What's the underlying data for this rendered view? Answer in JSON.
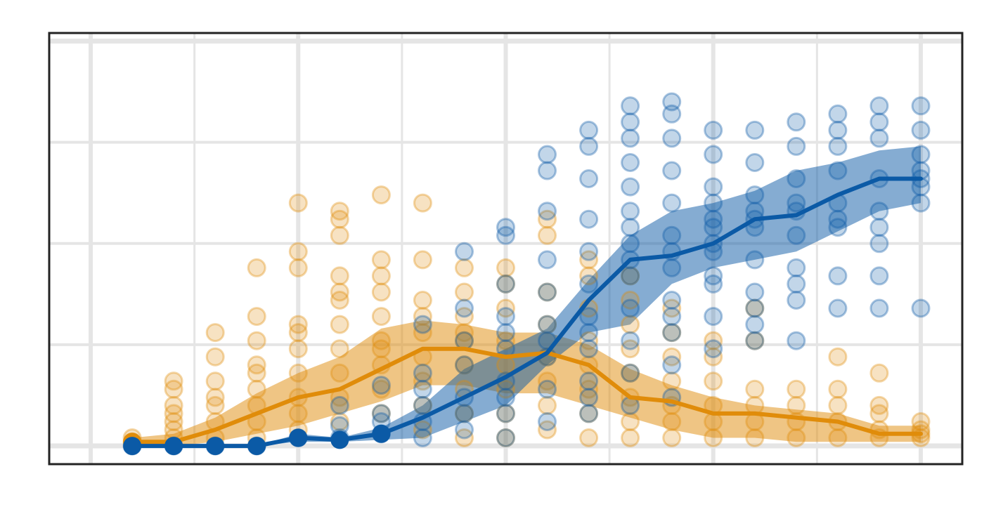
{
  "colors": {
    "series_a": "#0b5aa6",
    "series_b": "#e08c0a",
    "grid": "#e5e5e5",
    "frame": "#222222",
    "background": "#ffffff"
  },
  "chart_data": {
    "type": "line",
    "title": "",
    "xlabel": "",
    "ylabel": "",
    "tick_labels_visible": false,
    "xlim": [
      -1,
      21
    ],
    "ylim": [
      -0.45,
      10.2
    ],
    "grid": true,
    "legend": "none",
    "x": [
      1,
      2,
      3,
      4,
      5,
      6,
      7,
      8,
      9,
      10,
      11,
      12,
      13,
      14,
      15,
      16,
      17,
      18,
      19,
      20
    ],
    "series": [
      {
        "role": "blue",
        "mean": [
          0,
          0,
          0,
          0,
          0.2,
          0.15,
          0.3,
          0.7,
          1.2,
          1.7,
          2.3,
          3.6,
          4.6,
          4.7,
          5,
          5.6,
          5.7,
          6.2,
          6.6,
          6.6
        ],
        "band_low": [
          0,
          0,
          0,
          0,
          0.1,
          0.1,
          0.15,
          0.2,
          0.6,
          1.0,
          2.0,
          2.8,
          3.0,
          4.0,
          4.4,
          4.6,
          4.8,
          5.3,
          5.8,
          6.0
        ],
        "band_high": [
          0,
          0,
          0,
          0,
          0.3,
          0.2,
          0.45,
          1.0,
          1.9,
          2.4,
          2.9,
          4.1,
          5.2,
          5.8,
          6.0,
          6.3,
          6.8,
          7.0,
          7.3,
          7.4
        ],
        "points": [
          [
            1,
            0
          ],
          [
            2,
            0
          ],
          [
            3,
            0
          ],
          [
            4,
            0
          ],
          [
            5,
            0.2
          ],
          [
            6,
            0.2
          ],
          [
            6,
            1.0
          ],
          [
            6,
            0.5
          ],
          [
            7,
            0.3
          ],
          [
            7,
            0.8
          ],
          [
            7,
            1.5
          ],
          [
            7,
            0.6
          ],
          [
            8,
            0.2
          ],
          [
            8,
            1.0
          ],
          [
            8,
            1.4
          ],
          [
            8,
            3.0
          ],
          [
            8,
            0.6
          ],
          [
            8,
            1.8
          ],
          [
            9,
            0.4
          ],
          [
            9,
            1.2
          ],
          [
            9,
            2.0
          ],
          [
            9,
            2.6
          ],
          [
            9,
            3.4
          ],
          [
            9,
            4.8
          ],
          [
            9,
            0.8
          ],
          [
            10,
            0.2
          ],
          [
            10,
            0.8
          ],
          [
            10,
            1.6
          ],
          [
            10,
            2.4
          ],
          [
            10,
            3.2
          ],
          [
            10,
            4.0
          ],
          [
            10,
            5.2
          ],
          [
            10,
            5.4
          ],
          [
            10,
            2.8
          ],
          [
            10,
            1.2
          ],
          [
            11,
            0.6
          ],
          [
            11,
            1.4
          ],
          [
            11,
            2.2
          ],
          [
            11,
            3.0
          ],
          [
            11,
            3.8
          ],
          [
            11,
            4.6
          ],
          [
            11,
            5.8
          ],
          [
            11,
            6.8
          ],
          [
            11,
            7.2
          ],
          [
            11,
            2.6
          ],
          [
            12,
            0.8
          ],
          [
            12,
            1.6
          ],
          [
            12,
            2.4
          ],
          [
            12,
            3.2
          ],
          [
            12,
            4.0
          ],
          [
            12,
            4.8
          ],
          [
            12,
            5.6
          ],
          [
            12,
            6.6
          ],
          [
            12,
            7.4
          ],
          [
            12,
            7.8
          ],
          [
            12,
            2.8
          ],
          [
            12,
            1.2
          ],
          [
            13,
            1.0
          ],
          [
            13,
            1.8
          ],
          [
            13,
            2.6
          ],
          [
            13,
            3.4
          ],
          [
            13,
            4.2
          ],
          [
            13,
            5.0
          ],
          [
            13,
            5.8
          ],
          [
            13,
            6.4
          ],
          [
            13,
            7.0
          ],
          [
            13,
            7.6
          ],
          [
            13,
            8.0
          ],
          [
            13,
            8.4
          ],
          [
            13,
            4.6
          ],
          [
            13,
            5.4
          ],
          [
            14,
            1.2
          ],
          [
            14,
            2.0
          ],
          [
            14,
            2.8
          ],
          [
            14,
            3.2
          ],
          [
            14,
            3.6
          ],
          [
            14,
            4.4
          ],
          [
            14,
            5.2
          ],
          [
            14,
            6.0
          ],
          [
            14,
            6.8
          ],
          [
            14,
            7.6
          ],
          [
            14,
            8.2
          ],
          [
            14,
            8.5
          ],
          [
            14,
            4.8
          ],
          [
            15,
            2.4
          ],
          [
            15,
            3.2
          ],
          [
            15,
            4.0
          ],
          [
            15,
            4.8
          ],
          [
            15,
            5.6
          ],
          [
            15,
            6.4
          ],
          [
            15,
            7.2
          ],
          [
            15,
            7.8
          ],
          [
            15,
            5.0
          ],
          [
            15,
            5.4
          ],
          [
            15,
            4.2
          ],
          [
            15,
            6.0
          ],
          [
            16,
            3.0
          ],
          [
            16,
            3.4
          ],
          [
            16,
            3.8
          ],
          [
            16,
            4.6
          ],
          [
            16,
            5.4
          ],
          [
            16,
            6.2
          ],
          [
            16,
            7.0
          ],
          [
            16,
            7.8
          ],
          [
            16,
            5.8
          ],
          [
            16,
            5.6
          ],
          [
            16,
            2.6
          ],
          [
            17,
            3.6
          ],
          [
            17,
            4.4
          ],
          [
            17,
            5.2
          ],
          [
            17,
            6.0
          ],
          [
            17,
            6.6
          ],
          [
            17,
            7.4
          ],
          [
            17,
            8.0
          ],
          [
            17,
            4.0
          ],
          [
            17,
            5.8
          ],
          [
            17,
            2.6
          ],
          [
            18,
            3.4
          ],
          [
            18,
            4.2
          ],
          [
            18,
            5.4
          ],
          [
            18,
            6.0
          ],
          [
            18,
            6.8
          ],
          [
            18,
            7.4
          ],
          [
            18,
            7.8
          ],
          [
            18,
            8.2
          ],
          [
            18,
            5.6
          ],
          [
            19,
            4.2
          ],
          [
            19,
            5.0
          ],
          [
            19,
            5.8
          ],
          [
            19,
            6.6
          ],
          [
            19,
            7.6
          ],
          [
            19,
            8.0
          ],
          [
            19,
            8.4
          ],
          [
            19,
            3.4
          ],
          [
            19,
            5.4
          ],
          [
            20,
            3.4
          ],
          [
            20,
            6.0
          ],
          [
            20,
            6.6
          ],
          [
            20,
            6.8
          ],
          [
            20,
            7.2
          ],
          [
            20,
            7.8
          ],
          [
            20,
            8.4
          ],
          [
            20,
            6.4
          ]
        ]
      },
      {
        "role": "orange",
        "mean": [
          0.1,
          0.1,
          0.4,
          0.8,
          1.2,
          1.4,
          1.9,
          2.4,
          2.4,
          2.2,
          2.3,
          2.0,
          1.2,
          1.1,
          0.8,
          0.8,
          0.7,
          0.6,
          0.3,
          0.3
        ],
        "band_low": [
          0,
          0,
          0.1,
          0.3,
          0.5,
          0.8,
          1.1,
          1.5,
          1.5,
          1.3,
          1.3,
          1.0,
          0.7,
          0.4,
          0.2,
          0.2,
          0.1,
          0.1,
          0.1,
          0.1
        ],
        "band_high": [
          0.2,
          0.3,
          0.7,
          1.3,
          1.8,
          2.2,
          2.9,
          3.1,
          3.0,
          2.8,
          2.8,
          2.5,
          1.9,
          1.5,
          1.2,
          1.0,
          0.9,
          0.8,
          0.5,
          0.5
        ],
        "points": [
          [
            1,
            0.1
          ],
          [
            1,
            0.2
          ],
          [
            2,
            0.2
          ],
          [
            2,
            0.4
          ],
          [
            2,
            0.6
          ],
          [
            2,
            0.8
          ],
          [
            2,
            1.0
          ],
          [
            2,
            1.4
          ],
          [
            2,
            1.6
          ],
          [
            3,
            0.2
          ],
          [
            3,
            0.6
          ],
          [
            3,
            1.0
          ],
          [
            3,
            1.6
          ],
          [
            3,
            2.2
          ],
          [
            3,
            2.8
          ],
          [
            3,
            1.2
          ],
          [
            4,
            0.2
          ],
          [
            4,
            0.6
          ],
          [
            4,
            1.0
          ],
          [
            4,
            1.4
          ],
          [
            4,
            2.0
          ],
          [
            4,
            2.6
          ],
          [
            4,
            3.2
          ],
          [
            4,
            4.4
          ],
          [
            4,
            1.8
          ],
          [
            5,
            0.4
          ],
          [
            5,
            0.8
          ],
          [
            5,
            1.2
          ],
          [
            5,
            1.8
          ],
          [
            5,
            2.4
          ],
          [
            5,
            3.0
          ],
          [
            5,
            4.4
          ],
          [
            5,
            4.8
          ],
          [
            5,
            6.0
          ],
          [
            5,
            2.8
          ],
          [
            6,
            0.6
          ],
          [
            6,
            1.2
          ],
          [
            6,
            1.8
          ],
          [
            6,
            2.4
          ],
          [
            6,
            3.0
          ],
          [
            6,
            3.6
          ],
          [
            6,
            4.2
          ],
          [
            6,
            5.2
          ],
          [
            6,
            5.6
          ],
          [
            6,
            5.8
          ],
          [
            6,
            3.8
          ],
          [
            7,
            0.8
          ],
          [
            7,
            1.4
          ],
          [
            7,
            2.0
          ],
          [
            7,
            2.6
          ],
          [
            7,
            3.2
          ],
          [
            7,
            3.8
          ],
          [
            7,
            4.6
          ],
          [
            7,
            6.2
          ],
          [
            7,
            4.2
          ],
          [
            7,
            2.4
          ],
          [
            8,
            0.4
          ],
          [
            8,
            1.0
          ],
          [
            8,
            1.6
          ],
          [
            8,
            2.2
          ],
          [
            8,
            2.8
          ],
          [
            8,
            3.6
          ],
          [
            8,
            4.6
          ],
          [
            8,
            6.0
          ],
          [
            8,
            3.2
          ],
          [
            9,
            0.2
          ],
          [
            9,
            0.8
          ],
          [
            9,
            1.4
          ],
          [
            9,
            2.0
          ],
          [
            9,
            2.6
          ],
          [
            9,
            3.2
          ],
          [
            9,
            3.8
          ],
          [
            9,
            4.4
          ],
          [
            9,
            2.8
          ],
          [
            10,
            0.2
          ],
          [
            10,
            0.8
          ],
          [
            10,
            1.4
          ],
          [
            10,
            2.0
          ],
          [
            10,
            2.6
          ],
          [
            10,
            3.4
          ],
          [
            10,
            4.0
          ],
          [
            10,
            4.4
          ],
          [
            11,
            0.4
          ],
          [
            11,
            1.0
          ],
          [
            11,
            1.6
          ],
          [
            11,
            2.2
          ],
          [
            11,
            3.0
          ],
          [
            11,
            3.8
          ],
          [
            11,
            5.6
          ],
          [
            11,
            5.2
          ],
          [
            12,
            0.2
          ],
          [
            12,
            0.8
          ],
          [
            12,
            1.4
          ],
          [
            12,
            2.0
          ],
          [
            12,
            2.6
          ],
          [
            12,
            3.4
          ],
          [
            12,
            4.2
          ],
          [
            12,
            4.6
          ],
          [
            13,
            0.2
          ],
          [
            13,
            0.6
          ],
          [
            13,
            1.2
          ],
          [
            13,
            1.8
          ],
          [
            13,
            2.4
          ],
          [
            13,
            3.0
          ],
          [
            13,
            3.6
          ],
          [
            13,
            4.2
          ],
          [
            14,
            0.2
          ],
          [
            14,
            0.6
          ],
          [
            14,
            1.0
          ],
          [
            14,
            1.6
          ],
          [
            14,
            2.2
          ],
          [
            14,
            2.8
          ],
          [
            14,
            3.4
          ],
          [
            15,
            0.2
          ],
          [
            15,
            0.6
          ],
          [
            15,
            1.0
          ],
          [
            15,
            1.6
          ],
          [
            15,
            2.2
          ],
          [
            15,
            2.6
          ],
          [
            16,
            0.2
          ],
          [
            16,
            0.6
          ],
          [
            16,
            1.0
          ],
          [
            16,
            1.4
          ],
          [
            16,
            2.6
          ],
          [
            16,
            3.4
          ],
          [
            17,
            0.2
          ],
          [
            17,
            0.6
          ],
          [
            17,
            1.0
          ],
          [
            17,
            1.4
          ],
          [
            18,
            0.2
          ],
          [
            18,
            0.6
          ],
          [
            18,
            1.0
          ],
          [
            18,
            2.2
          ],
          [
            18,
            1.4
          ],
          [
            19,
            0.2
          ],
          [
            19,
            0.4
          ],
          [
            19,
            0.8
          ],
          [
            19,
            1.8
          ],
          [
            19,
            1.0
          ],
          [
            20,
            0.2
          ],
          [
            20,
            0.4
          ],
          [
            20,
            0.6
          ],
          [
            20,
            0.3
          ]
        ]
      }
    ]
  }
}
